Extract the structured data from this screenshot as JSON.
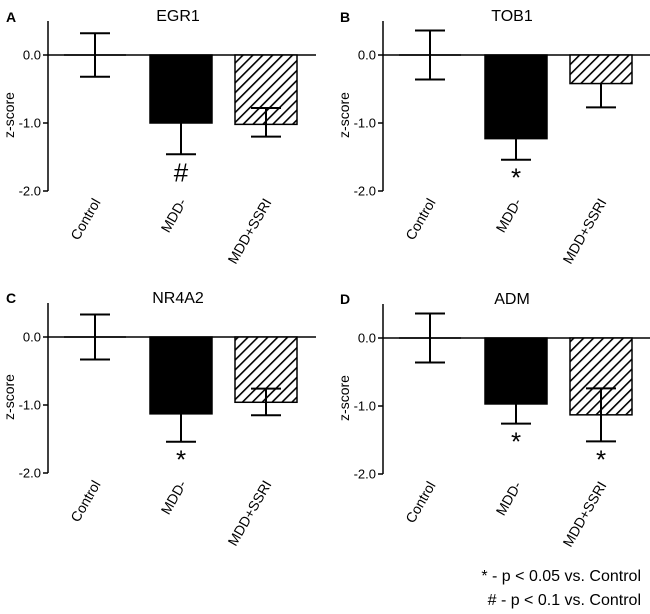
{
  "chart_data": [
    {
      "type": "bar",
      "panel": "A",
      "title": "EGR1",
      "ylabel": "z-score",
      "ylim": [
        -2.0,
        0.5
      ],
      "yticks": [
        "0.0",
        "-1.0",
        "-2.0"
      ],
      "categories": [
        "Control",
        "MDD-",
        "MDD+SSRI"
      ],
      "values": [
        0.0,
        -1.0,
        -1.02
      ],
      "error_low": [
        -0.32,
        -1.46,
        -1.2
      ],
      "error_high": [
        0.32,
        -1.0,
        -0.78
      ],
      "significance": [
        "",
        "#",
        ""
      ]
    },
    {
      "type": "bar",
      "panel": "B",
      "title": "TOB1",
      "ylabel": "z-score",
      "ylim": [
        -2.0,
        0.5
      ],
      "yticks": [
        "0.0",
        "-1.0",
        "-2.0"
      ],
      "categories": [
        "Control",
        "MDD-",
        "MDD+SSRI"
      ],
      "values": [
        0.0,
        -1.23,
        -0.42
      ],
      "error_low": [
        -0.36,
        -1.54,
        -0.77
      ],
      "error_high": [
        0.36,
        -1.23,
        -0.42
      ],
      "significance": [
        "",
        "*",
        ""
      ]
    },
    {
      "type": "bar",
      "panel": "C",
      "title": "NR4A2",
      "ylabel": "z-score",
      "ylim": [
        -2.0,
        0.5
      ],
      "yticks": [
        "0.0",
        "-1.0",
        "-2.0"
      ],
      "categories": [
        "Control",
        "MDD-",
        "MDD+SSRI"
      ],
      "values": [
        0.0,
        -1.13,
        -0.96
      ],
      "error_low": [
        -0.33,
        -1.54,
        -1.15
      ],
      "error_high": [
        0.33,
        -1.13,
        -0.76
      ],
      "significance": [
        "",
        "*",
        ""
      ]
    },
    {
      "type": "bar",
      "panel": "D",
      "title": "ADM",
      "ylabel": "z-score",
      "ylim": [
        -2.0,
        0.5
      ],
      "yticks": [
        "0.0",
        "-1.0",
        "-2.0"
      ],
      "categories": [
        "Control",
        "MDD-",
        "MDD+SSRI"
      ],
      "values": [
        0.0,
        -0.97,
        -1.13
      ],
      "error_low": [
        -0.36,
        -1.26,
        -1.52
      ],
      "error_high": [
        0.36,
        -0.97,
        -0.74
      ],
      "significance": [
        "",
        "*",
        "*"
      ]
    }
  ],
  "legend": [
    "* - p < 0.05 vs. Control",
    "# - p < 0.1 vs. Control"
  ],
  "colors": {
    "control_fill": "#ffffff",
    "mdd_fill": "#000000",
    "ssri_hatch": "#000000",
    "axis": "#000000"
  }
}
